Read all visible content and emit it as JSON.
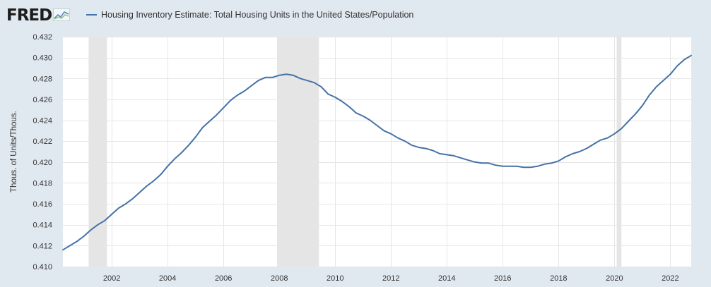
{
  "brand": {
    "logo_text": "FRED",
    "logo_icon": "line-chart-icon"
  },
  "legend": {
    "label": "Housing Inventory Estimate: Total Housing Units in the United States/Population",
    "color": "#4572a7"
  },
  "colors": {
    "page_bg": "#e1e9f0",
    "plot_bg": "#ffffff",
    "grid": "#e6e6e6",
    "recession": "#e5e5e5",
    "series": "#4572a7",
    "tick_text": "#333333"
  },
  "chart_data": {
    "type": "line",
    "title": "",
    "xlabel": "",
    "ylabel": "Thous. of Units/Thous.",
    "xlim": [
      2000.25,
      2022.75
    ],
    "ylim": [
      0.41,
      0.432
    ],
    "grid": true,
    "legend_position": "top-left",
    "x_ticks": [
      2002,
      2004,
      2006,
      2008,
      2010,
      2012,
      2014,
      2016,
      2018,
      2020,
      2022
    ],
    "y_ticks": [
      0.41,
      0.412,
      0.414,
      0.416,
      0.418,
      0.42,
      0.422,
      0.424,
      0.426,
      0.428,
      0.43,
      0.432
    ],
    "x_tick_labels": [
      "2002",
      "2004",
      "2006",
      "2008",
      "2010",
      "2012",
      "2014",
      "2016",
      "2018",
      "2020",
      "2022"
    ],
    "y_tick_labels": [
      "0.410",
      "0.412",
      "0.414",
      "0.416",
      "0.418",
      "0.420",
      "0.422",
      "0.424",
      "0.426",
      "0.428",
      "0.430",
      "0.432"
    ],
    "recessions": [
      [
        2001.17,
        2001.83
      ],
      [
        2007.92,
        2009.42
      ],
      [
        2020.08,
        2020.25
      ]
    ],
    "series": [
      {
        "name": "Housing Inventory Estimate: Total Housing Units in the United States/Population",
        "x": [
          2000.25,
          2000.5,
          2000.75,
          2001.0,
          2001.25,
          2001.5,
          2001.75,
          2002.0,
          2002.25,
          2002.5,
          2002.75,
          2003.0,
          2003.25,
          2003.5,
          2003.75,
          2004.0,
          2004.25,
          2004.5,
          2004.75,
          2005.0,
          2005.25,
          2005.5,
          2005.75,
          2006.0,
          2006.25,
          2006.5,
          2006.75,
          2007.0,
          2007.25,
          2007.5,
          2007.75,
          2008.0,
          2008.25,
          2008.5,
          2008.75,
          2009.0,
          2009.25,
          2009.5,
          2009.75,
          2010.0,
          2010.25,
          2010.5,
          2010.75,
          2011.0,
          2011.25,
          2011.5,
          2011.75,
          2012.0,
          2012.25,
          2012.5,
          2012.75,
          2013.0,
          2013.25,
          2013.5,
          2013.75,
          2014.0,
          2014.25,
          2014.5,
          2014.75,
          2015.0,
          2015.25,
          2015.5,
          2015.75,
          2016.0,
          2016.25,
          2016.5,
          2016.75,
          2017.0,
          2017.25,
          2017.5,
          2017.75,
          2018.0,
          2018.25,
          2018.5,
          2018.75,
          2019.0,
          2019.25,
          2019.5,
          2019.75,
          2020.0,
          2020.25,
          2020.5,
          2020.75,
          2021.0,
          2021.25,
          2021.5,
          2021.75,
          2022.0,
          2022.25,
          2022.5,
          2022.75
        ],
        "values": [
          0.4116,
          0.412,
          0.4124,
          0.4129,
          0.4135,
          0.414,
          0.4144,
          0.415,
          0.4156,
          0.416,
          0.4165,
          0.4171,
          0.4177,
          0.4182,
          0.4188,
          0.4196,
          0.4203,
          0.4209,
          0.4216,
          0.4224,
          0.4233,
          0.4239,
          0.4245,
          0.4252,
          0.4259,
          0.4264,
          0.4268,
          0.4273,
          0.4278,
          0.4281,
          0.4281,
          0.4283,
          0.4284,
          0.4283,
          0.428,
          0.4278,
          0.4276,
          0.4272,
          0.4265,
          0.4262,
          0.4258,
          0.4253,
          0.4247,
          0.4244,
          0.424,
          0.4235,
          0.423,
          0.4227,
          0.4223,
          0.422,
          0.4216,
          0.4214,
          0.4213,
          0.4211,
          0.4208,
          0.4207,
          0.4206,
          0.4204,
          0.4202,
          0.42,
          0.4199,
          0.4199,
          0.4197,
          0.4196,
          0.4196,
          0.4196,
          0.4195,
          0.4195,
          0.4196,
          0.4198,
          0.4199,
          0.4201,
          0.4205,
          0.4208,
          0.421,
          0.4213,
          0.4217,
          0.4221,
          0.4223,
          0.4227,
          0.4232,
          0.4239,
          0.4246,
          0.4254,
          0.4264,
          0.4272,
          0.4278,
          0.4284,
          0.4292,
          0.4298,
          0.4302
        ]
      }
    ]
  }
}
